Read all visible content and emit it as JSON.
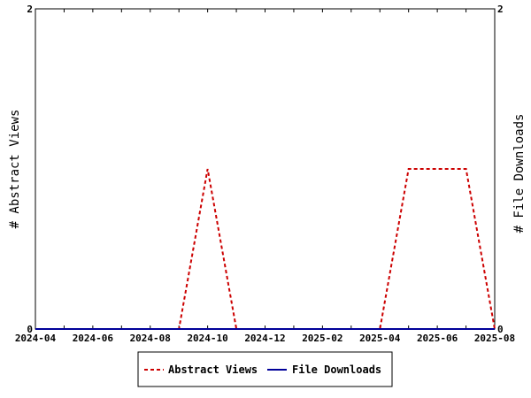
{
  "chart_data": {
    "type": "line",
    "x": [
      "2024-04",
      "2024-05",
      "2024-06",
      "2024-07",
      "2024-08",
      "2024-09",
      "2024-10",
      "2024-11",
      "2024-12",
      "2025-01",
      "2025-02",
      "2025-03",
      "2025-04",
      "2025-05",
      "2025-06",
      "2025-07",
      "2025-08"
    ],
    "xticks": [
      "2024-04",
      "2024-06",
      "2024-08",
      "2024-10",
      "2024-12",
      "2025-02",
      "2025-04",
      "2025-06",
      "2025-08"
    ],
    "series": [
      {
        "name": "Abstract Views",
        "axis": "left",
        "color": "#cc0000",
        "dash": "dashed",
        "values": [
          0,
          0,
          0,
          0,
          0,
          0,
          1,
          0,
          0,
          0,
          0,
          0,
          0,
          1,
          1,
          1,
          0
        ]
      },
      {
        "name": "File Downloads",
        "axis": "right",
        "color": "#000099",
        "dash": "solid",
        "values": [
          0,
          0,
          0,
          0,
          0,
          0,
          0,
          0,
          0,
          0,
          0,
          0,
          0,
          0,
          0,
          0,
          0
        ]
      }
    ],
    "ylabel_left": "# Abstract Views",
    "ylabel_right": "# File Downloads",
    "ylim_left": [
      0,
      2
    ],
    "ylim_right": [
      0,
      2
    ],
    "yticks_left": [
      "0",
      "2"
    ],
    "yticks_right": [
      "0",
      "2"
    ],
    "legend_position": "bottom-center",
    "grid": false
  }
}
